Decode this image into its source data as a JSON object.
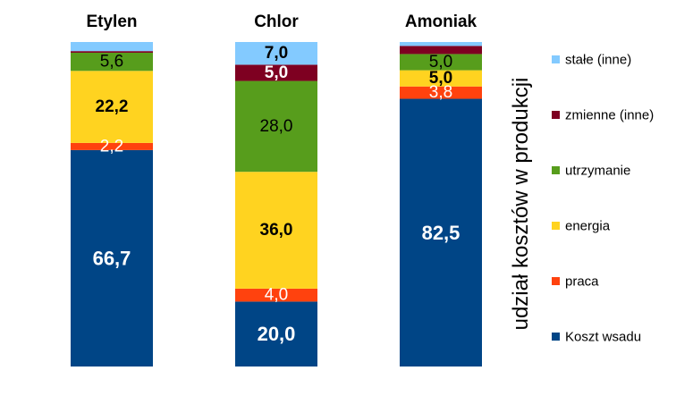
{
  "chart_data": {
    "type": "bar",
    "stacked": true,
    "orientation": "vertical",
    "categories": [
      "Etylen",
      "Chlor",
      "Amoniak"
    ],
    "ylabel": "udział kosztów w produkcji",
    "ylim": [
      0,
      100
    ],
    "grid": false,
    "legend_position": "right",
    "series": [
      {
        "name": "Koszt wsadu",
        "color": "#004586",
        "values": [
          66.7,
          20.0,
          82.5
        ],
        "labels": [
          "66,7",
          "20,0",
          "82,5"
        ],
        "label_color": "#ffffff",
        "label_bold": [
          true,
          true,
          true
        ]
      },
      {
        "name": "praca",
        "color": "#ff420e",
        "values": [
          2.2,
          4.0,
          3.8
        ],
        "labels": [
          "2,2",
          "4,0",
          "3,8"
        ],
        "label_color": "#ffffff",
        "label_bold": [
          false,
          false,
          false
        ]
      },
      {
        "name": "energia",
        "color": "#ffd320",
        "values": [
          22.2,
          36.0,
          5.0
        ],
        "labels": [
          "22,2",
          "36,0",
          "5,0"
        ],
        "label_color": "#000000",
        "label_bold": [
          true,
          true,
          true
        ]
      },
      {
        "name": "utrzymanie",
        "color": "#579d1c",
        "values": [
          5.6,
          28.0,
          5.0
        ],
        "labels": [
          "5,6",
          "28,0",
          "5,0"
        ],
        "label_color": "#000000",
        "label_bold": [
          false,
          false,
          false
        ]
      },
      {
        "name": "zmienne (inne)",
        "color": "#7e0021",
        "values": [
          0.5,
          5.0,
          2.5
        ],
        "labels": [
          "",
          "5,0",
          ""
        ],
        "label_color": "#ffffff",
        "label_bold": [
          false,
          true,
          false
        ]
      },
      {
        "name": "stałe (inne)",
        "color": "#83caff",
        "values": [
          2.8,
          7.0,
          1.2
        ],
        "labels": [
          "",
          "7,0",
          ""
        ],
        "label_color": "#000000",
        "label_bold": [
          false,
          true,
          false
        ]
      }
    ]
  }
}
